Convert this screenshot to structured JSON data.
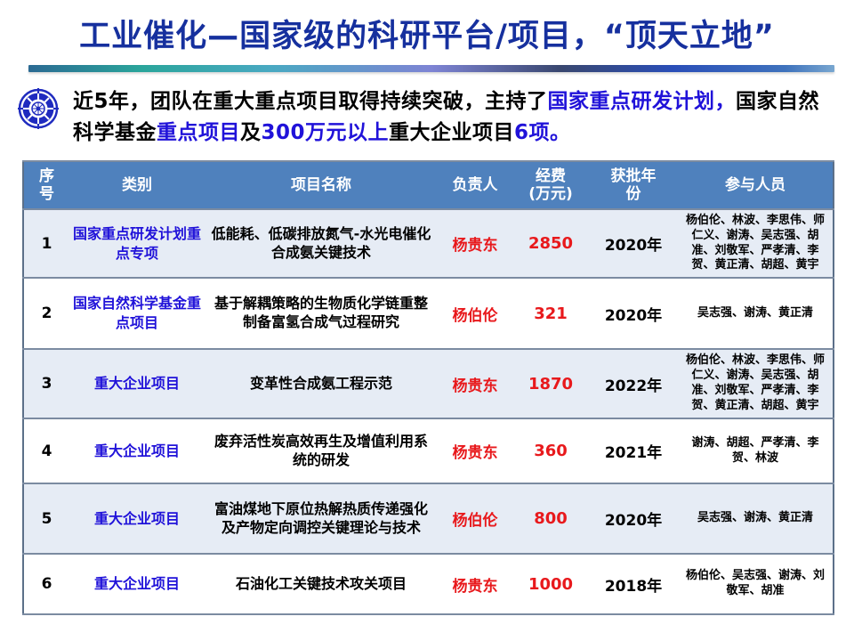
{
  "title": "工业催化—国家级的科研平台/项目，“顶天立地”",
  "intro": {
    "segments": [
      {
        "text": "近5年，团队在重大重点项目取得持续突破，主持了",
        "color": "black"
      },
      {
        "text": "国家重点研发计划，",
        "color": "blue"
      },
      {
        "text": "国家自然科学基金",
        "color": "black"
      },
      {
        "text": "重点项目",
        "color": "blue"
      },
      {
        "text": "及",
        "color": "black"
      },
      {
        "text": "300万元以上",
        "color": "blue"
      },
      {
        "text": "重大企业项目",
        "color": "black"
      },
      {
        "text": "6项",
        "color": "blue"
      },
      {
        "text": "。",
        "color": "blue"
      }
    ]
  },
  "icons": {
    "bullet_emblem": "university-emblem-icon"
  },
  "table": {
    "headers": [
      "序\n号",
      "类别",
      "项目名称",
      "负责人",
      "经费\n(万元)",
      "获批年\n份",
      "参与人员"
    ],
    "rows": [
      {
        "no": "1",
        "category": "国家重点研发计划重点专项",
        "project": "低能耗、低碳排放氮气-水光电催化合成氨关键技术",
        "leader": "杨贵东",
        "funding": "2850",
        "year": "2020年",
        "participants": "杨伯伦、林波、李思伟、师仁义、谢涛、吴志强、胡准、刘敬军、严孝清、李贺、黄正清、胡超、黄宇"
      },
      {
        "no": "2",
        "category": "国家自然科学基金重点项目",
        "project": "基于解耦策略的生物质化学链重整制备富氢合成气过程研究",
        "leader": "杨伯伦",
        "funding": "321",
        "year": "2020年",
        "participants": "吴志强、谢涛、黄正清"
      },
      {
        "no": "3",
        "category": "重大企业项目",
        "project": "变革性合成氨工程示范",
        "leader": "杨贵东",
        "funding": "1870",
        "year": "2022年",
        "participants": "杨伯伦、林波、李思伟、师仁义、谢涛、吴志强、胡准、刘敬军、严孝清、李贺、黄正清、胡超、黄宇"
      },
      {
        "no": "4",
        "category": "重大企业项目",
        "project": "废弃活性炭高效再生及增值利用系统的研发",
        "leader": "杨贵东",
        "funding": "360",
        "year": "2021年",
        "participants": "谢涛、胡超、严孝清、李贺、林波"
      },
      {
        "no": "5",
        "category": "重大企业项目",
        "project": "富油煤地下原位热解热质传递强化及产物定向调控关键理论与技术",
        "leader": "杨伯伦",
        "funding": "800",
        "year": "2020年",
        "participants": "吴志强、谢涛、黄正清"
      },
      {
        "no": "6",
        "category": "重大企业项目",
        "project": "石油化工关键技术攻关项目",
        "leader": "杨贵东",
        "funding": "1000",
        "year": "2018年",
        "participants": "杨伯伦、吴志强、谢涛、刘敬军、胡准"
      }
    ]
  },
  "colors": {
    "title_blue": "#16309e",
    "accent_blue": "#2012d9",
    "accent_red": "#e8191c",
    "header_bg": "#4f81bd",
    "row_tint": "#e6ecf5",
    "table_border": "#5c7089",
    "table_divider": "#7b8ba1",
    "emblem_blue": "#1f2bbf"
  },
  "top_bar_gradient": [
    "#2b6a93 0%",
    "#2aa59b 14%",
    "#49a9c2 30%",
    "#7e84d4 50%",
    "#39476f 66%",
    "#2a4eb8 80%",
    "#3f73bd 94%",
    "#79a7d0 100%"
  ]
}
